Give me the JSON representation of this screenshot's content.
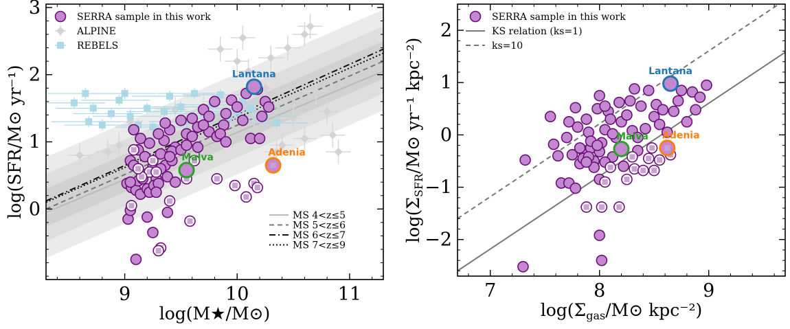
{
  "chart_data": [
    {
      "type": "scatter",
      "xlabel": "log(M★/M⊙)",
      "ylabel": "log(SFR/M⊙ yr⁻¹)",
      "xlim": [
        8.3,
        11.3
      ],
      "ylim": [
        -1.05,
        3.05
      ],
      "xticks": [
        "9",
        "10",
        "11"
      ],
      "yticks": [
        "0",
        "1",
        "2",
        "3"
      ],
      "legend_main": {
        "placement": "top-left",
        "entries": [
          "SERRA sample in this work",
          "ALPINE",
          "REBELS"
        ]
      },
      "legend_ms": {
        "placement": "bottom-right",
        "entries": [
          "MS 4<z≤5",
          "MS 5<z≤6",
          "MS 6<z≤7",
          "MS 7<z≤9"
        ]
      },
      "annotations": [
        {
          "text": "Lantana",
          "color": "#1f77b4",
          "x": 10.15,
          "y": 1.82
        },
        {
          "text": "Malva",
          "color": "#2ca02c",
          "x": 9.55,
          "y": 0.58
        },
        {
          "text": "Adenia",
          "color": "#ff7f0e",
          "x": 10.32,
          "y": 0.65
        }
      ],
      "ms_lines": [
        {
          "name": "MS 4<z≤5",
          "style": "solid",
          "color": "#bbbbbb",
          "x": [
            8.3,
            11.3
          ],
          "y": [
            -0.05,
            2.05
          ]
        },
        {
          "name": "MS 5<z≤6",
          "style": "dashed",
          "color": "#777777",
          "x": [
            8.3,
            11.3
          ],
          "y": [
            0.0,
            2.2
          ]
        },
        {
          "name": "MS 6<z≤7",
          "style": "dashdot",
          "color": "#111111",
          "x": [
            8.3,
            11.3
          ],
          "y": [
            0.12,
            2.38
          ]
        },
        {
          "name": "MS 7<z≤9",
          "style": "dotted",
          "color": "#111111",
          "x": [
            8.3,
            11.3
          ],
          "y": [
            0.1,
            2.32
          ]
        }
      ],
      "series": [
        {
          "name": "SERRA sample in this work",
          "points": [
            [
              9.05,
              0.72
            ],
            [
              9.08,
              0.65
            ],
            [
              9.12,
              0.88
            ],
            [
              9.15,
              0.52
            ],
            [
              9.18,
              0.78
            ],
            [
              9.22,
              0.98
            ],
            [
              9.25,
              0.62
            ],
            [
              9.28,
              0.45
            ],
            [
              9.32,
              0.82
            ],
            [
              9.35,
              1.02
            ],
            [
              9.4,
              1.18
            ],
            [
              9.45,
              0.92
            ],
            [
              9.5,
              1.32
            ],
            [
              9.55,
              1.12
            ],
            [
              9.6,
              1.35
            ],
            [
              9.65,
              1.22
            ],
            [
              9.7,
              1.48
            ],
            [
              9.75,
              1.15
            ],
            [
              9.82,
              1.08
            ],
            [
              9.9,
              1.42
            ],
            [
              9.95,
              1.62
            ],
            [
              9.8,
              1.6
            ],
            [
              10.0,
              1.52
            ],
            [
              10.08,
              1.72
            ],
            [
              10.18,
              1.78
            ],
            [
              9.02,
              0.38
            ],
            [
              9.06,
              0.32
            ],
            [
              9.1,
              0.28
            ],
            [
              9.12,
              0.42
            ],
            [
              9.14,
              0.22
            ],
            [
              9.16,
              0.45
            ],
            [
              9.2,
              0.3
            ],
            [
              9.22,
              0.25
            ],
            [
              9.26,
              0.35
            ],
            [
              9.3,
              0.38
            ],
            [
              9.36,
              0.65
            ],
            [
              9.38,
              0.48
            ],
            [
              9.42,
              0.72
            ],
            [
              9.45,
              0.4
            ],
            [
              9.28,
              0.25
            ],
            [
              9.05,
              0.4
            ],
            [
              9.08,
              1.18
            ],
            [
              9.14,
              1.05
            ],
            [
              9.3,
              1.12
            ],
            [
              9.36,
              1.28
            ],
            [
              9.42,
              0.86
            ],
            [
              9.5,
              0.88
            ],
            [
              9.6,
              1.08
            ],
            [
              9.7,
              1.25
            ],
            [
              9.75,
              1.38
            ],
            [
              9.88,
              1.25
            ],
            [
              10.05,
              1.32
            ],
            [
              9.32,
              0.6
            ],
            [
              9.4,
              0.78
            ],
            [
              9.55,
              0.95
            ],
            [
              9.65,
              0.92
            ],
            [
              9.85,
              1.12
            ],
            [
              9.9,
              1.0
            ],
            [
              10.12,
              1.05
            ],
            [
              10.2,
              1.05
            ],
            [
              10.25,
              1.6
            ],
            [
              10.28,
              1.52
            ],
            [
              10.22,
              1.38
            ],
            [
              9.03,
              -0.15
            ],
            [
              9.05,
              -0.02
            ],
            [
              9.2,
              -0.12
            ],
            [
              9.25,
              -0.35
            ],
            [
              9.38,
              -0.05
            ],
            [
              9.1,
              -0.75
            ]
          ]
        },
        {
          "name": "ALPINE",
          "points": [
            [
              8.85,
              0.85
            ],
            [
              8.95,
              0.95
            ],
            [
              9.05,
              1.3
            ],
            [
              9.25,
              1.02
            ],
            [
              9.45,
              1.48
            ],
            [
              9.55,
              1.22
            ],
            [
              9.7,
              1.52
            ],
            [
              9.85,
              2.38
            ],
            [
              10.0,
              2.2
            ],
            [
              10.1,
              2.05
            ],
            [
              10.3,
              2.25
            ],
            [
              10.45,
              2.4
            ],
            [
              10.6,
              2.6
            ],
            [
              10.85,
              1.1
            ],
            [
              10.9,
              0.85
            ],
            [
              10.6,
              1.05
            ],
            [
              10.5,
              1.35
            ],
            [
              10.25,
              1.8
            ],
            [
              10.15,
              1.38
            ],
            [
              10.4,
              0.95
            ],
            [
              10.7,
              1.75
            ],
            [
              10.8,
              1.45
            ],
            [
              8.6,
              0.8
            ],
            [
              10.65,
              2.72
            ],
            [
              10.05,
              2.55
            ],
            [
              9.95,
              1.42
            ],
            [
              10.35,
              0.85
            ]
          ]
        },
        {
          "name": "REBELS",
          "points": [
            [
              8.55,
              1.58
            ],
            [
              8.65,
              1.72
            ],
            [
              8.72,
              1.5
            ],
            [
              8.88,
              1.42
            ],
            [
              8.95,
              1.62
            ],
            [
              9.05,
              1.38
            ],
            [
              9.12,
              1.25
            ],
            [
              9.2,
              1.5
            ],
            [
              9.25,
              1.22
            ],
            [
              9.35,
              1.45
            ],
            [
              9.4,
              1.68
            ],
            [
              9.5,
              1.52
            ],
            [
              9.55,
              1.3
            ],
            [
              9.62,
              1.72
            ],
            [
              9.7,
              1.42
            ],
            [
              9.78,
              1.55
            ],
            [
              9.85,
              1.7
            ],
            [
              9.92,
              1.35
            ],
            [
              10.0,
              1.45
            ],
            [
              10.05,
              1.6
            ],
            [
              10.12,
              1.5
            ],
            [
              10.25,
              1.38
            ],
            [
              10.35,
              1.28
            ],
            [
              8.68,
              1.3
            ],
            [
              8.8,
              1.25
            ],
            [
              9.0,
              1.72
            ]
          ]
        }
      ],
      "upper_limits": [
        [
          9.08,
          0.88
        ],
        [
          9.22,
          0.55
        ],
        [
          9.15,
          0.48
        ],
        [
          9.06,
          0.05
        ],
        [
          9.32,
          -0.58
        ],
        [
          9.58,
          -0.18
        ],
        [
          9.4,
          0.12
        ],
        [
          9.55,
          0.45
        ],
        [
          9.62,
          0.72
        ],
        [
          9.82,
          0.45
        ],
        [
          9.98,
          0.35
        ],
        [
          10.08,
          0.18
        ],
        [
          10.15,
          0.38
        ],
        [
          10.18,
          0.32
        ],
        [
          9.12,
          0.6
        ],
        [
          9.28,
          0.55
        ],
        [
          9.3,
          -0.62
        ],
        [
          9.25,
          0.72
        ],
        [
          10.3,
          0.65
        ]
      ]
    },
    {
      "type": "scatter",
      "xlabel": "log(Σgas/M⊙ kpc⁻²)",
      "ylabel": "log(ΣSFR/M⊙ yr⁻¹ kpc⁻²)",
      "xlim": [
        6.7,
        9.7
      ],
      "ylim": [
        -2.7,
        2.5
      ],
      "xticks": [
        "7",
        "8",
        "9"
      ],
      "yticks": [
        "−2",
        "−1",
        "0",
        "1",
        "2"
      ],
      "legend_main": {
        "placement": "top-left",
        "entries": [
          "SERRA sample in this work",
          "KS relation (ks=1)",
          "ks=10"
        ]
      },
      "annotations": [
        {
          "text": "Lantana",
          "color": "#1f77b4",
          "x": 8.65,
          "y": 0.98
        },
        {
          "text": "Malva",
          "color": "#2ca02c",
          "x": 8.2,
          "y": -0.27
        },
        {
          "text": "Adenia",
          "color": "#ff7f0e",
          "x": 8.62,
          "y": -0.25
        }
      ],
      "ks_lines": [
        {
          "name": "KS relation (ks=1)",
          "style": "solid",
          "color": "#777777",
          "x": [
            6.7,
            9.7
          ],
          "y": [
            -2.6,
            1.58
          ]
        },
        {
          "name": "ks=10",
          "style": "dashed",
          "color": "#777777",
          "x": [
            6.7,
            9.7
          ],
          "y": [
            -1.6,
            2.58
          ]
        }
      ],
      "series": [
        {
          "name": "SERRA sample in this work",
          "points": [
            [
              7.32,
              -0.48
            ],
            [
              7.55,
              0.35
            ],
            [
              7.58,
              -0.18
            ],
            [
              7.62,
              -0.4
            ],
            [
              7.65,
              -0.92
            ],
            [
              7.7,
              -0.05
            ],
            [
              7.72,
              0.25
            ],
            [
              7.75,
              -0.38
            ],
            [
              7.78,
              0.52
            ],
            [
              7.8,
              0.15
            ],
            [
              7.82,
              -0.55
            ],
            [
              7.85,
              -0.3
            ],
            [
              7.88,
              0.3
            ],
            [
              7.9,
              0.05
            ],
            [
              7.92,
              -0.25
            ],
            [
              7.95,
              -0.5
            ],
            [
              7.98,
              0.5
            ],
            [
              8.0,
              0.75
            ],
            [
              8.02,
              -0.15
            ],
            [
              8.05,
              0.1
            ],
            [
              8.08,
              0.45
            ],
            [
              8.1,
              0.3
            ],
            [
              8.12,
              -0.42
            ],
            [
              8.15,
              -0.05
            ],
            [
              8.18,
              0.62
            ],
            [
              8.2,
              0.25
            ],
            [
              8.22,
              -0.6
            ],
            [
              8.25,
              0.38
            ],
            [
              8.28,
              0.65
            ],
            [
              8.3,
              0.08
            ],
            [
              8.32,
              0.88
            ],
            [
              8.35,
              -0.3
            ],
            [
              8.38,
              0.55
            ],
            [
              8.42,
              0.12
            ],
            [
              8.45,
              0.85
            ],
            [
              8.5,
              0.35
            ],
            [
              8.52,
              0.58
            ],
            [
              8.55,
              0.2
            ],
            [
              8.58,
              0.48
            ],
            [
              8.62,
              0.05
            ],
            [
              8.68,
              0.45
            ],
            [
              8.72,
              0.65
            ],
            [
              8.75,
              0.85
            ],
            [
              8.8,
              0.25
            ],
            [
              8.85,
              0.82
            ],
            [
              8.88,
              0.48
            ],
            [
              8.92,
              0.72
            ],
            [
              8.98,
              0.95
            ],
            [
              7.72,
              -0.92
            ],
            [
              7.78,
              -1.02
            ],
            [
              7.85,
              -0.45
            ],
            [
              7.95,
              -0.62
            ],
            [
              8.0,
              -0.85
            ],
            [
              8.05,
              -0.52
            ],
            [
              8.0,
              -1.92
            ],
            [
              8.02,
              -2.4
            ],
            [
              7.82,
              -0.25
            ],
            [
              7.92,
              -0.12
            ],
            [
              8.0,
              -0.32
            ],
            [
              8.05,
              0.55
            ],
            [
              8.12,
              0.02
            ],
            [
              7.9,
              -0.42
            ],
            [
              7.98,
              -0.2
            ],
            [
              8.35,
              -0.05
            ],
            [
              7.3,
              -2.52
            ],
            [
              7.88,
              -0.52
            ]
          ]
        }
      ],
      "upper_limits": [
        [
          7.88,
          -1.38
        ],
        [
          8.02,
          -1.38
        ],
        [
          8.18,
          -1.38
        ],
        [
          8.05,
          -0.9
        ],
        [
          8.3,
          -0.42
        ],
        [
          8.32,
          -0.65
        ],
        [
          8.45,
          -0.45
        ],
        [
          8.5,
          -0.68
        ],
        [
          8.55,
          -0.48
        ],
        [
          8.65,
          -0.38
        ],
        [
          8.48,
          -0.25
        ],
        [
          8.62,
          -0.25
        ],
        [
          8.4,
          -0.68
        ],
        [
          8.25,
          -0.85
        ],
        [
          8.1,
          -0.62
        ]
      ]
    }
  ]
}
